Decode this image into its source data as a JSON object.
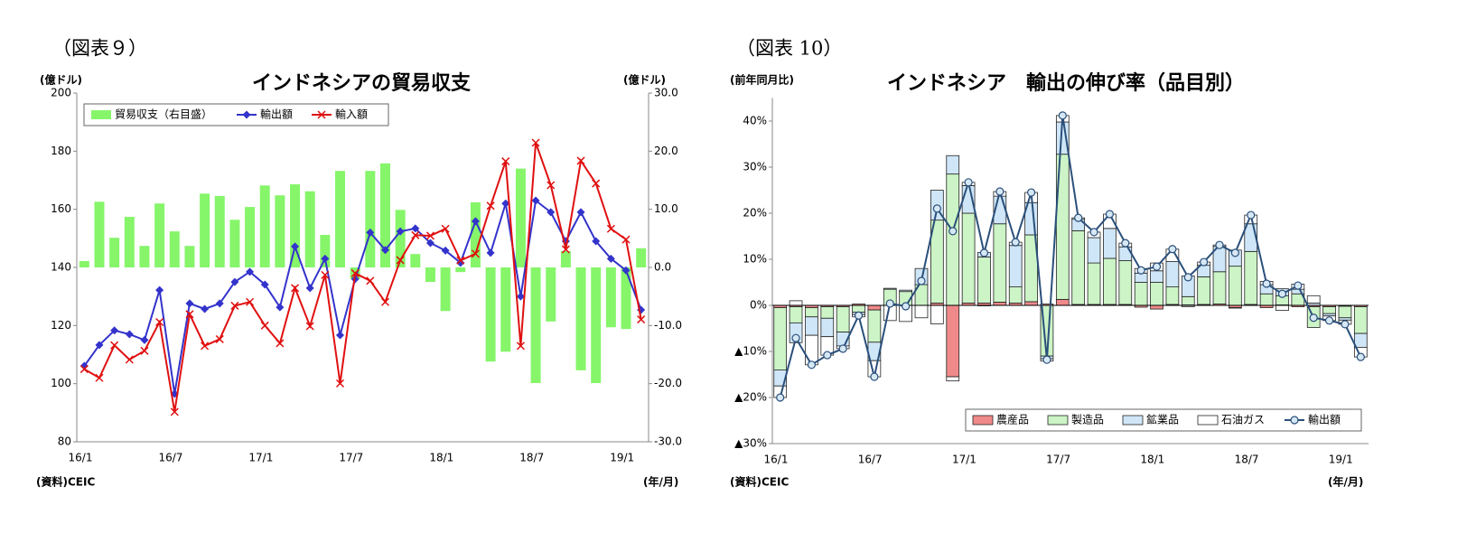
{
  "chart_data": [
    {
      "type": "combo",
      "figure_label": "（図表９）",
      "title": "インドネシアの貿易収支",
      "ylabel": "(億ドル)",
      "y2label": "(億ドル)",
      "source": "(資料)CEIC",
      "xlabel": "(年/月)",
      "categories": [
        "16/1",
        null,
        null,
        null,
        null,
        null,
        "16/7",
        null,
        null,
        null,
        null,
        null,
        "17/1",
        null,
        null,
        null,
        null,
        null,
        "17/7",
        null,
        null,
        null,
        null,
        null,
        "18/1",
        null,
        null,
        null,
        null,
        null,
        "18/7",
        null,
        null,
        null,
        null,
        null,
        "19/1",
        null
      ],
      "ylim": [
        80,
        200
      ],
      "yticks": [
        80,
        100,
        120,
        140,
        160,
        180,
        200
      ],
      "y2lim": [
        -30,
        30
      ],
      "y2ticks": [
        {
          "value": -30,
          "label": "-30.0"
        },
        {
          "value": -20,
          "label": "-20.0"
        },
        {
          "value": -10,
          "label": "-10.0"
        },
        {
          "value": 0,
          "label": "0.0"
        },
        {
          "value": 10,
          "label": "10.0"
        },
        {
          "value": 20,
          "label": "20.0"
        },
        {
          "value": 30,
          "label": "30.0"
        }
      ],
      "legend": "upper left",
      "series": [
        {
          "name": "貿易収支（右目盛）",
          "kind": "bar",
          "axis": "y2",
          "color": "#86f56a",
          "values": [
            1.1,
            11.3,
            5.1,
            8.7,
            3.7,
            11.0,
            6.2,
            3.7,
            12.7,
            12.3,
            8.2,
            10.4,
            14.1,
            12.4,
            14.3,
            13.1,
            5.6,
            16.6,
            -2.0,
            16.6,
            17.9,
            9.9,
            2.3,
            -2.5,
            -7.5,
            -0.8,
            11.2,
            -16.2,
            -14.5,
            17.0,
            -19.9,
            -9.3,
            2.8,
            -17.7,
            -19.9,
            -10.3,
            -10.6,
            3.3
          ]
        },
        {
          "name": "輸出額",
          "kind": "line",
          "marker": "diamond",
          "color": "#3333cc",
          "values": [
            106.1,
            113.3,
            118.3,
            117.0,
            115.0,
            132.2,
            96.5,
            127.6,
            125.7,
            127.6,
            135.0,
            138.5,
            134.1,
            126.3,
            147.2,
            132.9,
            143.0,
            116.7,
            136.0,
            152.0,
            146.0,
            152.4,
            153.4,
            148.4,
            145.8,
            141.6,
            155.9,
            145.0,
            162.0,
            130.0,
            163.0,
            159.0,
            149.0,
            159.0,
            149.0,
            143.0,
            139.0,
            125.4
          ]
        },
        {
          "name": "輸入額",
          "kind": "line",
          "marker": "x",
          "color": "#e01010",
          "values": [
            105.0,
            102.0,
            113.2,
            108.3,
            111.3,
            121.2,
            90.3,
            123.9,
            113.0,
            115.3,
            126.8,
            128.1,
            120.0,
            113.9,
            132.9,
            119.8,
            137.4,
            100.1,
            138.0,
            135.4,
            128.1,
            142.5,
            151.1,
            150.9,
            153.3,
            142.4,
            144.7,
            161.2,
            176.5,
            113.0,
            182.9,
            168.3,
            146.2,
            176.7,
            168.9,
            153.3,
            149.6,
            122.1
          ]
        }
      ]
    },
    {
      "type": "stacked_bar",
      "figure_label": "（図表 10）",
      "title": "インドネシア　輸出の伸び率（品目別）",
      "ylabel": "(前年同月比)",
      "source": "(資料)CEIC",
      "xlabel": "(年/月)",
      "categories": [
        "16/1",
        null,
        null,
        null,
        null,
        null,
        "16/7",
        null,
        null,
        null,
        null,
        null,
        "17/1",
        null,
        null,
        null,
        null,
        null,
        "17/7",
        null,
        null,
        null,
        null,
        null,
        "18/1",
        null,
        null,
        null,
        null,
        null,
        "18/7",
        null,
        null,
        null,
        null,
        null,
        "19/1",
        null
      ],
      "ylim": [
        -30,
        45
      ],
      "yticks": [
        {
          "value": -30,
          "label": "▲30%"
        },
        {
          "value": -20,
          "label": "▲20%"
        },
        {
          "value": -10,
          "label": "▲10%"
        },
        {
          "value": 0,
          "label": "0%"
        },
        {
          "value": 10,
          "label": "10%"
        },
        {
          "value": 20,
          "label": "20%"
        },
        {
          "value": 30,
          "label": "30%"
        },
        {
          "value": 40,
          "label": "40%"
        }
      ],
      "legend": "lower right",
      "series": [
        {
          "name": "農産品",
          "kind": "bar",
          "color": "#f08a8a",
          "values": [
            -0.5,
            -0.3,
            -0.5,
            -0.3,
            -0.3,
            0.3,
            -1.0,
            0,
            0,
            0,
            0.5,
            -15.5,
            0.5,
            0.5,
            0.7,
            0.5,
            0.8,
            0.3,
            1.3,
            0.2,
            0.2,
            0.2,
            0.2,
            -0.4,
            -0.8,
            0.2,
            0.1,
            0.2,
            0.3,
            -0.5,
            0.2,
            -0.5,
            0.1,
            -0.3,
            -0.3,
            -0.3,
            -0.2,
            -0.3
          ]
        },
        {
          "name": "製造品",
          "kind": "bar",
          "color": "#ccf4c6",
          "values": [
            -13.5,
            -3.5,
            -2.0,
            -2.5,
            -5.5,
            -1.5,
            -7.0,
            3.5,
            3.0,
            4.5,
            18.0,
            28.5,
            19.5,
            10.0,
            17.0,
            3.5,
            14.5,
            -11.0,
            31.5,
            16.0,
            9.0,
            10.0,
            9.5,
            5.0,
            5.0,
            3.8,
            1.8,
            6.0,
            7.0,
            8.5,
            11.5,
            2.5,
            2.0,
            2.5,
            -4.5,
            -1.5,
            -2.5,
            -5.8
          ]
        },
        {
          "name": "鉱業品",
          "kind": "bar",
          "color": "#cfe6f8",
          "values": [
            -3.5,
            -4.3,
            -4.0,
            -4.0,
            -3.0,
            -0.5,
            -4.0,
            0.2,
            0.3,
            3.5,
            6.5,
            4.0,
            6.0,
            1.0,
            6.0,
            9.0,
            7.0,
            -0.6,
            7.0,
            2.5,
            5.5,
            6.5,
            3.0,
            2.0,
            2.5,
            5.5,
            4.5,
            2.5,
            5.5,
            3.5,
            6.0,
            2.0,
            1.5,
            1.0,
            0.5,
            -0.5,
            -0.5,
            -3.0
          ]
        },
        {
          "name": "石油ガス",
          "kind": "bar",
          "color": "#ffffff",
          "values": [
            -2.5,
            1.0,
            -6.4,
            -4.0,
            -0.6,
            -0.5,
            -3.5,
            -3.3,
            -3.5,
            -2.7,
            -4.0,
            -0.9,
            0.7,
            -0.1,
            1.0,
            0.7,
            2.2,
            -0.5,
            1.4,
            0.3,
            1.2,
            3.1,
            0.8,
            1.0,
            1.7,
            2.7,
            -0.3,
            0.7,
            0.3,
            -0.1,
            1.9,
            0.7,
            -1.1,
            1.1,
            1.6,
            -1.0,
            -0.9,
            -2.1
          ]
        },
        {
          "name": "輸出額",
          "kind": "line",
          "marker": "circle",
          "color": "#2a4f7a",
          "values": [
            -20.0,
            -7.1,
            -12.9,
            -10.8,
            -9.4,
            -2.2,
            -15.5,
            0.4,
            -0.2,
            5.3,
            21.0,
            16.1,
            26.7,
            11.4,
            24.7,
            13.7,
            24.5,
            -11.8,
            41.2,
            19.0,
            15.9,
            19.8,
            13.5,
            7.6,
            8.4,
            12.2,
            6.1,
            9.4,
            13.1,
            11.4,
            19.6,
            4.7,
            2.5,
            4.3,
            -2.7,
            -3.3,
            -4.1,
            -11.2
          ]
        }
      ]
    }
  ]
}
